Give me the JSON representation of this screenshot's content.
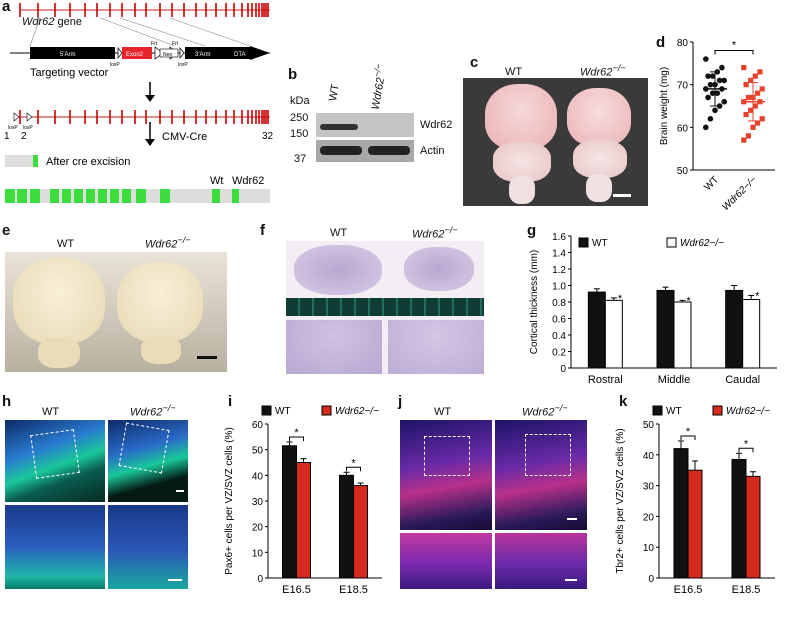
{
  "panels": {
    "a": {
      "label": "a",
      "gene_label": "Wdr62",
      "gene_suffix": "gene",
      "vector_label": "Targeting vector",
      "arm5": "5'Arm",
      "arm3": "3'Arm",
      "exon2": "Exon2",
      "frt1": "Frt",
      "frt2": "Frt",
      "neo": "Neo",
      "dta": "DTA",
      "loxp1": "loxP",
      "loxp2": "loxP",
      "loxp3": "loxP",
      "loxp4": "loxP",
      "exon_start": "1",
      "exon_two": "2",
      "exon_end": "32",
      "cmv": "CMV-Cre",
      "after_cre": "After cre excision",
      "wt_label": "Wt",
      "wdr62_label": "Wdr62"
    },
    "b": {
      "label": "b",
      "kda": "kDa",
      "col_wt": "WT",
      "col_ko": "Wdr62",
      "col_ko_sup": "−/−",
      "mw": [
        "250",
        "150",
        "37"
      ],
      "band1": "Wdr62",
      "band2": "Actin"
    },
    "c": {
      "label": "c",
      "wt": "WT",
      "ko": "Wdr62",
      "ko_sup": "−/−"
    },
    "e": {
      "label": "e",
      "wt": "WT",
      "ko": "Wdr62",
      "ko_sup": "−/−"
    },
    "f": {
      "label": "f",
      "wt": "WT",
      "ko": "Wdr62",
      "ko_sup": "−/−"
    },
    "h": {
      "label": "h",
      "wt": "WT",
      "ko": "Wdr62",
      "ko_sup": "−/−"
    },
    "j": {
      "label": "j",
      "wt": "WT",
      "ko": "Wdr62",
      "ko_sup": "−/−"
    }
  },
  "chart_data": [
    {
      "id": "d",
      "type": "scatter",
      "ylabel": "Brain weight (mg)",
      "ylim": [
        50,
        80
      ],
      "yticks": [
        50,
        60,
        70,
        80
      ],
      "categories": [
        "WT",
        "Wdr62−/−"
      ],
      "sig": "*",
      "colors": [
        "#111111",
        "#e8422d"
      ],
      "series": [
        {
          "values": [
            76,
            74,
            73,
            72,
            72,
            71,
            71,
            70,
            70,
            69,
            69,
            68,
            68,
            67,
            66,
            65,
            64,
            62,
            60
          ],
          "mean": 69,
          "sd": 4
        },
        {
          "values": [
            74,
            73,
            72,
            71,
            70,
            69,
            68,
            67,
            67,
            66,
            66,
            65,
            64,
            63,
            62,
            61,
            60,
            58,
            57
          ],
          "mean": 66,
          "sd": 4.5
        }
      ]
    },
    {
      "id": "g",
      "type": "bar",
      "ylabel": "Cortical thickness (mm)",
      "ylim": [
        0,
        1.6
      ],
      "yticks": [
        "0",
        "0.2",
        "0.4",
        "0.6",
        "0.8",
        "1.0",
        "1.2",
        "1.4",
        "1.6"
      ],
      "categories": [
        "Rostral",
        "Middle",
        "Caudal"
      ],
      "legend": [
        "WT",
        "Wdr62−/−"
      ],
      "colors": [
        "#111111",
        "#ffffff"
      ],
      "series": [
        {
          "values": [
            0.92,
            0.94,
            0.94
          ],
          "err": [
            0.04,
            0.04,
            0.06
          ]
        },
        {
          "values": [
            0.82,
            0.8,
            0.83
          ],
          "err": [
            0.03,
            0.02,
            0.05
          ]
        }
      ],
      "sig": [
        "*",
        "*",
        "*"
      ]
    },
    {
      "id": "i",
      "type": "bar",
      "ylabel": "Pax6+ cells per VZ/SVZ cells (%)",
      "ylim": [
        0,
        60
      ],
      "yticks": [
        "0",
        "10",
        "20",
        "30",
        "40",
        "50",
        "60"
      ],
      "categories": [
        "E16.5",
        "E18.5"
      ],
      "legend": [
        "WT",
        "Wdr62−/−"
      ],
      "colors": [
        "#111111",
        "#d52b1e"
      ],
      "series": [
        {
          "values": [
            51.5,
            40
          ],
          "err": [
            1.5,
            1.2
          ]
        },
        {
          "values": [
            45,
            36
          ],
          "err": [
            1.5,
            1.0
          ]
        }
      ],
      "sig": [
        "*",
        "*"
      ]
    },
    {
      "id": "k",
      "type": "bar",
      "ylabel": "Tbr2+ cells per VZ/SVZ cells (%)",
      "ylim": [
        0,
        50
      ],
      "yticks": [
        "0",
        "10",
        "20",
        "30",
        "40",
        "50"
      ],
      "categories": [
        "E16.5",
        "E18.5"
      ],
      "legend": [
        "WT",
        "Wdr62−/−"
      ],
      "colors": [
        "#111111",
        "#d52b1e"
      ],
      "series": [
        {
          "values": [
            42,
            38.5
          ],
          "err": [
            2.5,
            2.0
          ]
        },
        {
          "values": [
            35,
            33
          ],
          "err": [
            3.0,
            1.5
          ]
        }
      ],
      "sig": [
        "*",
        "*"
      ]
    }
  ]
}
